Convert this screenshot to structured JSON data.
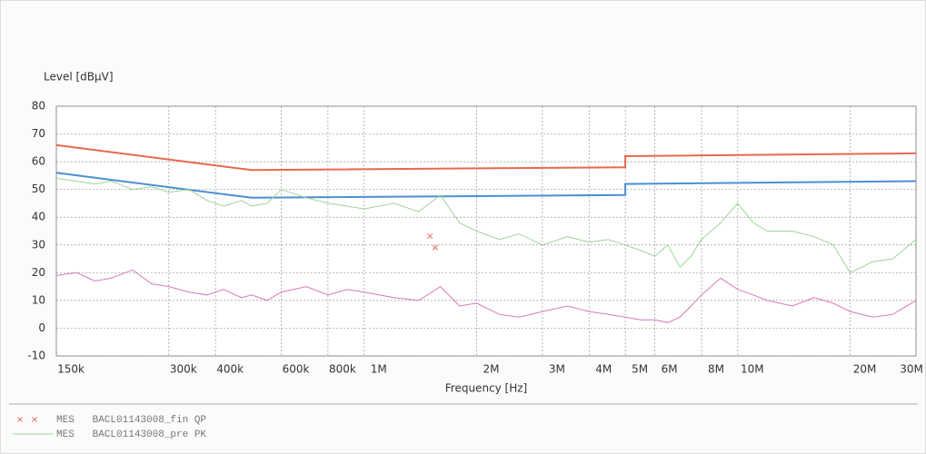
{
  "chart_data": {
    "type": "line",
    "x_label": "Frequency [Hz]",
    "y_label": "Level [dBµV]",
    "xscale": "log",
    "grid": true,
    "xlim": [
      150000,
      30000000
    ],
    "ylim": [
      -10,
      80
    ],
    "yticks": [
      -10,
      0,
      10,
      20,
      30,
      40,
      50,
      60,
      70,
      80
    ],
    "xticks": [
      {
        "value": 150000,
        "label": "150k"
      },
      {
        "value": 300000,
        "label": "300k"
      },
      {
        "value": 400000,
        "label": "400k"
      },
      {
        "value": 600000,
        "label": "600k"
      },
      {
        "value": 800000,
        "label": "800k"
      },
      {
        "value": 1000000,
        "label": "1M"
      },
      {
        "value": 2000000,
        "label": "2M"
      },
      {
        "value": 3000000,
        "label": "3M"
      },
      {
        "value": 4000000,
        "label": "4M"
      },
      {
        "value": 5000000,
        "label": "5M"
      },
      {
        "value": 6000000,
        "label": "6M"
      },
      {
        "value": 8000000,
        "label": "8M"
      },
      {
        "value": 10000000,
        "label": "10M"
      },
      {
        "value": 20000000,
        "label": "20M"
      },
      {
        "value": 30000000,
        "label": "30M"
      }
    ],
    "series": [
      {
        "color": "#e8684f",
        "x": [
          150000,
          500000,
          5000000,
          5000000,
          30000000
        ],
        "values": [
          66,
          57,
          58,
          62,
          63
        ]
      },
      {
        "color": "#4a90d0",
        "x": [
          150000,
          500000,
          5000000,
          5000000,
          30000000
        ],
        "values": [
          56,
          47,
          48,
          52,
          53
        ]
      },
      {
        "name": "MES   BACL01143008_pre PK",
        "color": "#9fd49a",
        "x": [
          150000,
          170000,
          190000,
          210000,
          240000,
          270000,
          300000,
          340000,
          380000,
          420000,
          470000,
          500000,
          550000,
          600000,
          700000,
          800000,
          900000,
          1000000,
          1200000,
          1400000,
          1600000,
          1800000,
          2000000,
          2300000,
          2600000,
          3000000,
          3500000,
          4000000,
          4500000,
          5000000,
          5500000,
          6000000,
          6500000,
          7000000,
          7500000,
          8000000,
          9000000,
          10000000,
          11000000,
          12000000,
          14000000,
          16000000,
          18000000,
          20000000,
          23000000,
          26000000,
          30000000
        ],
        "values": [
          54,
          53,
          52,
          53,
          50,
          51,
          49,
          50,
          46,
          44,
          46,
          44,
          45,
          50,
          47,
          45,
          44,
          43,
          45,
          42,
          48,
          38,
          35,
          32,
          34,
          30,
          33,
          31,
          32,
          30,
          28,
          26,
          30,
          22,
          26,
          32,
          38,
          45,
          38,
          35,
          35,
          33,
          30,
          20,
          24,
          25,
          32
        ]
      },
      {
        "color": "#d779b8",
        "x": [
          150000,
          170000,
          190000,
          210000,
          240000,
          270000,
          300000,
          340000,
          380000,
          420000,
          470000,
          500000,
          550000,
          600000,
          700000,
          800000,
          900000,
          1000000,
          1200000,
          1400000,
          1600000,
          1800000,
          2000000,
          2300000,
          2600000,
          3000000,
          3500000,
          4000000,
          4500000,
          5000000,
          5500000,
          6000000,
          6500000,
          7000000,
          7500000,
          8000000,
          9000000,
          10000000,
          11000000,
          12000000,
          14000000,
          16000000,
          18000000,
          20000000,
          23000000,
          26000000,
          30000000
        ],
        "values": [
          19,
          20,
          17,
          18,
          21,
          16,
          15,
          13,
          12,
          14,
          11,
          12,
          10,
          13,
          15,
          12,
          14,
          13,
          11,
          10,
          15,
          8,
          9,
          5,
          4,
          6,
          8,
          6,
          5,
          4,
          3,
          3,
          2,
          4,
          8,
          12,
          18,
          14,
          12,
          10,
          8,
          11,
          9,
          6,
          4,
          5,
          10
        ]
      }
    ],
    "markers": {
      "name": "MES   BACL01143008_fin QP",
      "color": "#e0604a",
      "x": [
        1500000,
        1550000
      ],
      "values": [
        33,
        29
      ]
    }
  }
}
